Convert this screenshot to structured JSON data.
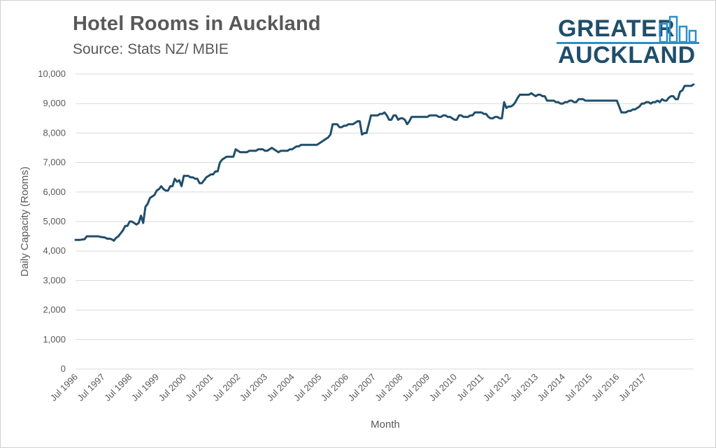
{
  "chart_data": {
    "type": "line",
    "title": "Hotel Rooms in Auckland",
    "subtitle": "Source: Stats NZ/ MBIE",
    "xlabel": "Month",
    "ylabel": "Daily Capacity (Rooms)",
    "ylim": [
      0,
      10000
    ],
    "yticks": [
      "0",
      "1,000",
      "2,000",
      "3,000",
      "4,000",
      "5,000",
      "6,000",
      "7,000",
      "8,000",
      "9,000",
      "10,000"
    ],
    "xticks": [
      "Jul 1996",
      "Jul 1997",
      "Jul 1998",
      "Jul 1999",
      "Jul 2000",
      "Jul 2001",
      "Jul 2002",
      "Jul 2003",
      "Jul 2004",
      "Jul 2005",
      "Jul 2006",
      "Jul 2007",
      "Jul 2008",
      "Jul 2009",
      "Jul 2010",
      "Jul 2011",
      "Jul 2012",
      "Jul 2013",
      "Jul 2014",
      "Jul 2015",
      "Jul 2016",
      "Jul 2017"
    ],
    "x_start": "1996-07",
    "grid": true,
    "legend": "none",
    "series": [
      {
        "color": "#1f4e6b",
        "values": [
          4380,
          4380,
          4380,
          4390,
          4400,
          4500,
          4500,
          4500,
          4500,
          4500,
          4500,
          4480,
          4470,
          4460,
          4420,
          4420,
          4400,
          4350,
          4450,
          4500,
          4600,
          4700,
          4850,
          4850,
          5000,
          5000,
          4950,
          4900,
          4950,
          5200,
          4950,
          5500,
          5600,
          5800,
          5850,
          5900,
          6050,
          6100,
          6200,
          6100,
          6050,
          6050,
          6200,
          6200,
          6450,
          6350,
          6400,
          6200,
          6550,
          6550,
          6550,
          6500,
          6500,
          6450,
          6450,
          6300,
          6300,
          6400,
          6500,
          6550,
          6600,
          6600,
          6700,
          6700,
          7000,
          7100,
          7150,
          7200,
          7200,
          7200,
          7200,
          7450,
          7400,
          7350,
          7350,
          7350,
          7350,
          7400,
          7400,
          7400,
          7400,
          7450,
          7450,
          7450,
          7400,
          7400,
          7450,
          7500,
          7450,
          7400,
          7350,
          7400,
          7400,
          7400,
          7400,
          7450,
          7450,
          7500,
          7550,
          7550,
          7600,
          7600,
          7600,
          7600,
          7600,
          7600,
          7600,
          7600,
          7650,
          7700,
          7750,
          7800,
          7850,
          7950,
          8300,
          8300,
          8300,
          8200,
          8200,
          8250,
          8250,
          8300,
          8300,
          8300,
          8350,
          8400,
          8400,
          7950,
          8000,
          8000,
          8300,
          8600,
          8600,
          8600,
          8600,
          8650,
          8650,
          8700,
          8600,
          8450,
          8450,
          8600,
          8600,
          8450,
          8500,
          8500,
          8450,
          8300,
          8400,
          8550,
          8550,
          8550,
          8550,
          8550,
          8550,
          8550,
          8550,
          8600,
          8600,
          8600,
          8600,
          8550,
          8550,
          8600,
          8600,
          8550,
          8550,
          8500,
          8450,
          8450,
          8600,
          8600,
          8550,
          8550,
          8550,
          8600,
          8600,
          8700,
          8700,
          8700,
          8700,
          8650,
          8650,
          8550,
          8500,
          8500,
          8550,
          8550,
          8500,
          8500,
          9050,
          8850,
          8900,
          8900,
          8950,
          9050,
          9200,
          9300,
          9300,
          9300,
          9300,
          9300,
          9350,
          9300,
          9250,
          9300,
          9300,
          9250,
          9250,
          9100,
          9100,
          9100,
          9100,
          9050,
          9050,
          9000,
          9000,
          9050,
          9050,
          9100,
          9100,
          9050,
          9050,
          9150,
          9150,
          9150,
          9100,
          9100,
          9100,
          9100,
          9100,
          9100,
          9100,
          9100,
          9100,
          9100,
          9100,
          9100,
          9100,
          9100,
          9100,
          8900,
          8700,
          8700,
          8700,
          8750,
          8750,
          8800,
          8800,
          8850,
          8900,
          9000,
          9000,
          9050,
          9050,
          9000,
          9050,
          9050,
          9100,
          9050,
          9150,
          9100,
          9100,
          9200,
          9250,
          9250,
          9150,
          9150,
          9400,
          9450,
          9600,
          9600,
          9600,
          9600,
          9650
        ]
      }
    ]
  }
}
